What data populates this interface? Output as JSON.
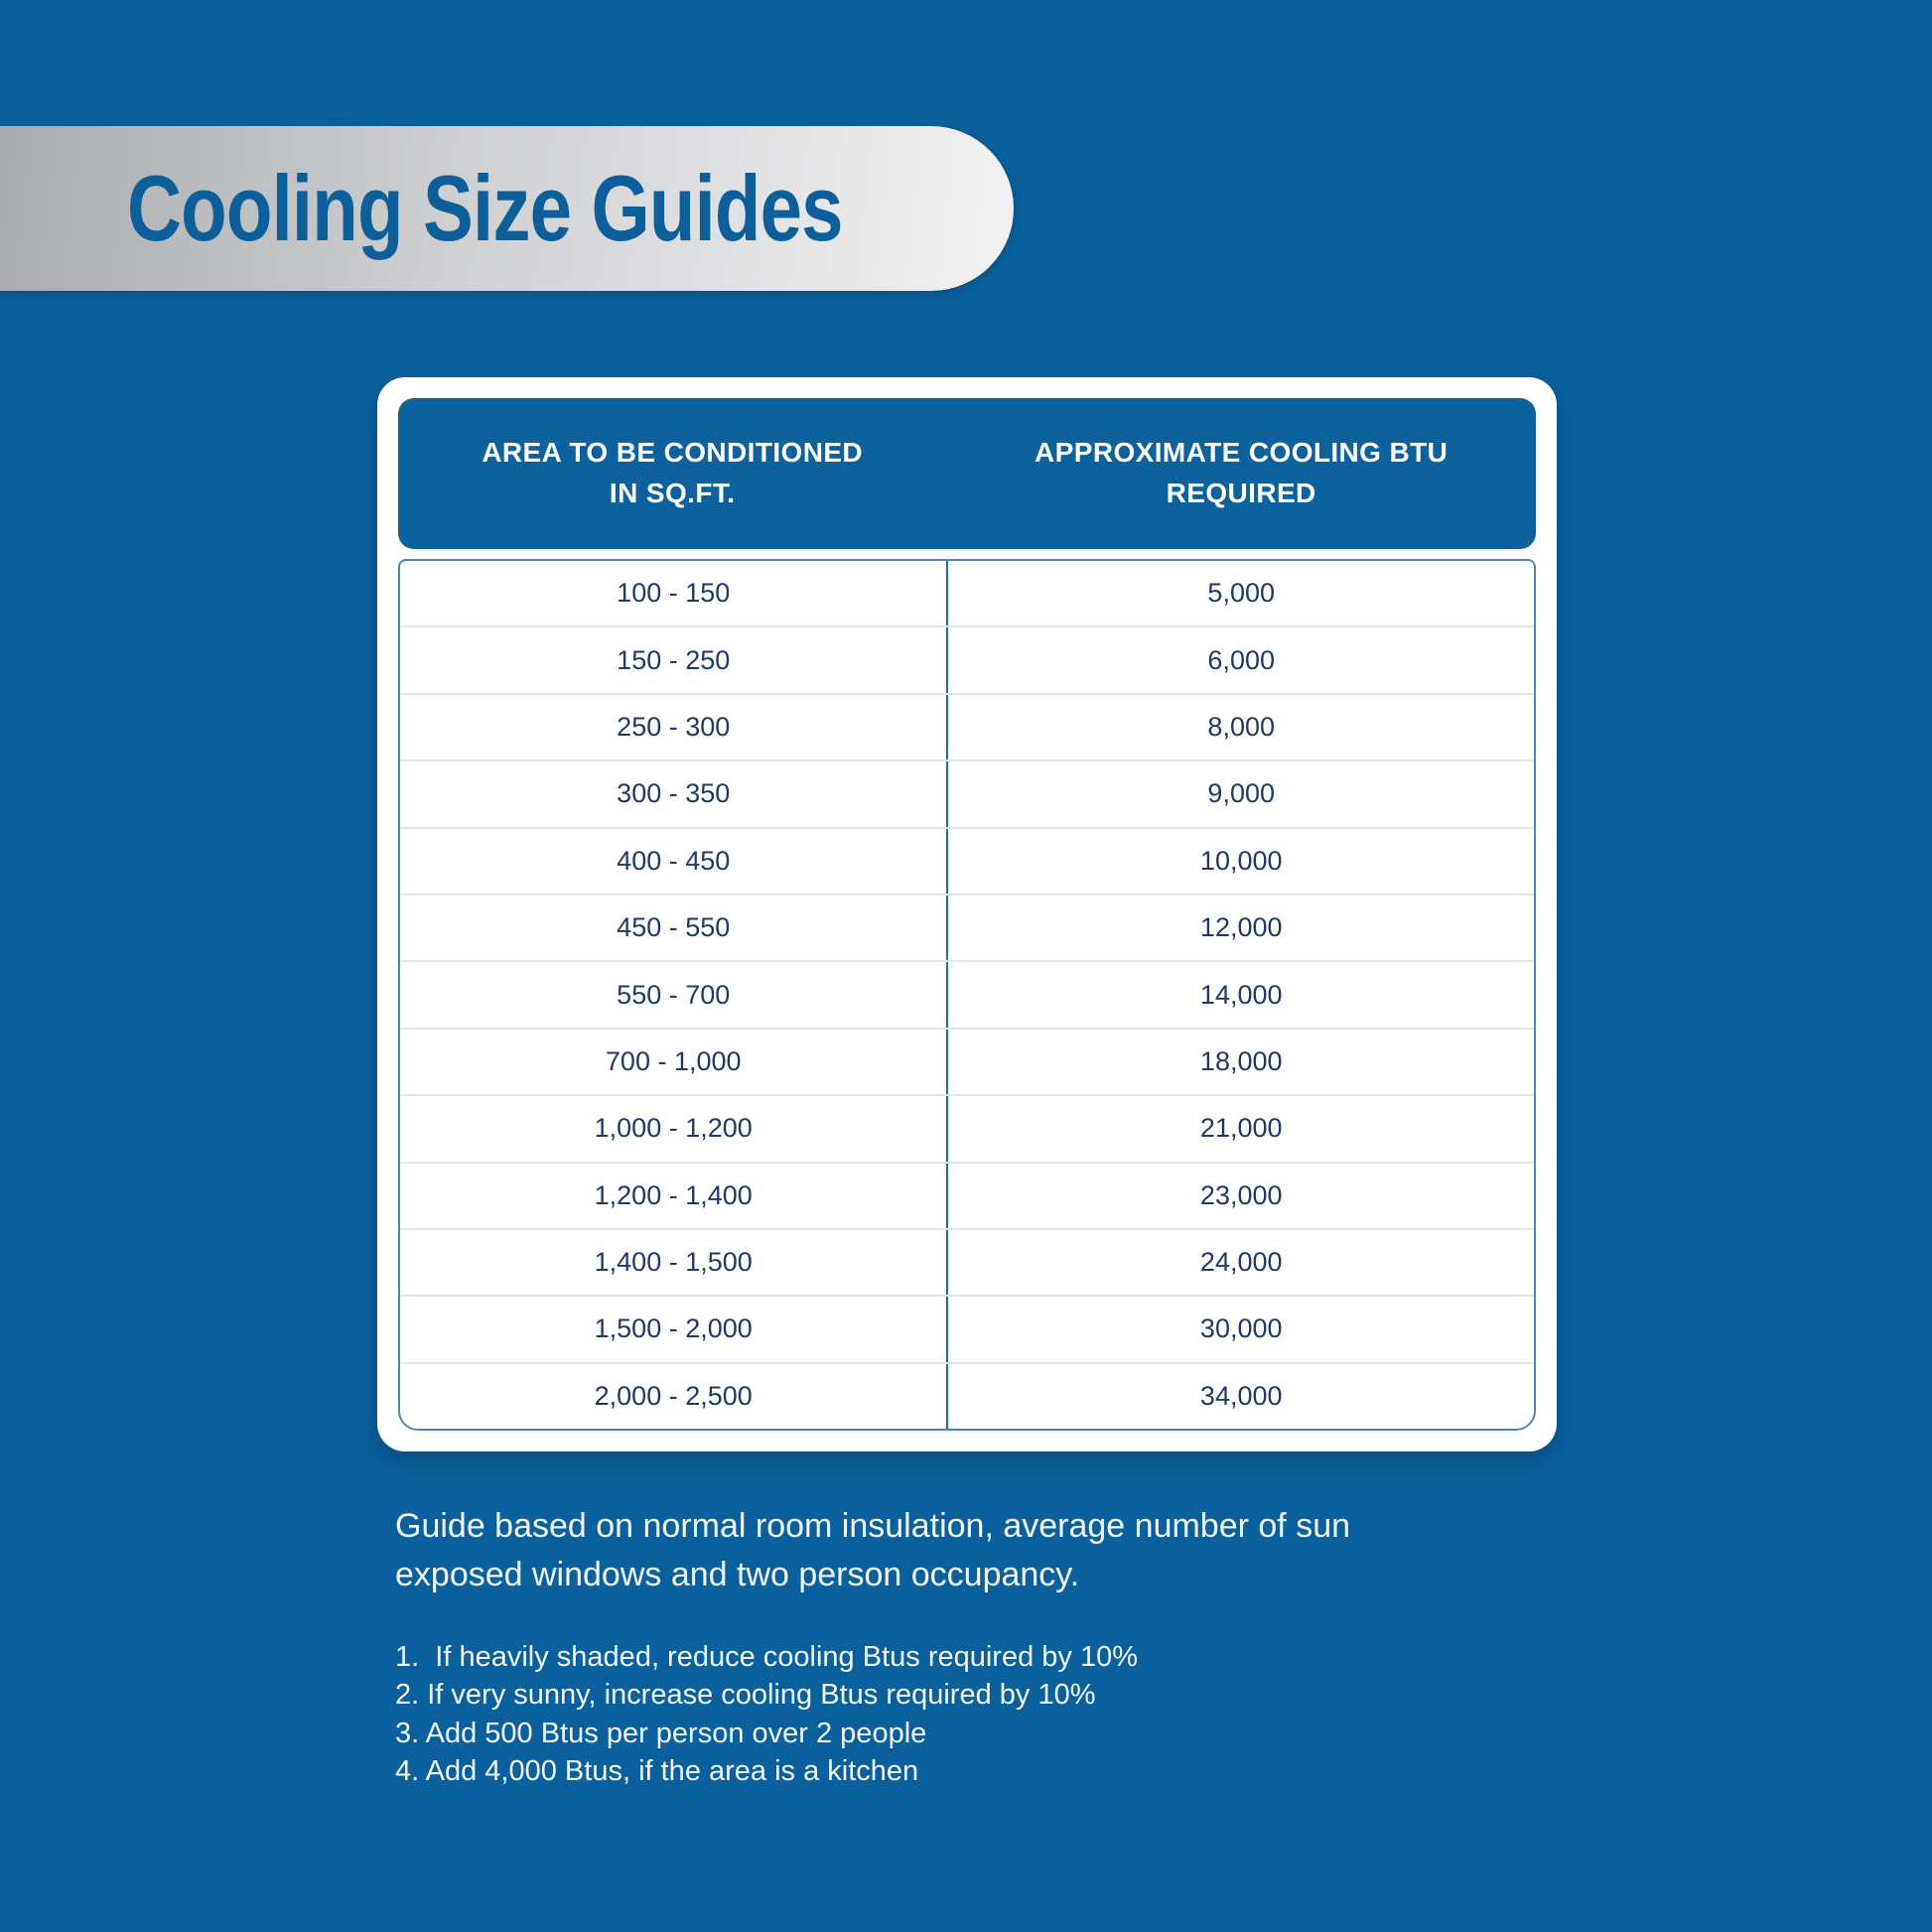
{
  "page": {
    "background_color": "#0a609c"
  },
  "banner": {
    "title": "Cooling Size Guides",
    "title_color": "#0d5f9b",
    "gradient_left": "#a9abae",
    "gradient_right": "#f2f2f3"
  },
  "table": {
    "header_bg": "#0d619d",
    "row_text_color": "#1e3a69",
    "divider_color": "#1373b2",
    "border_color": "#4e87b6",
    "headers": {
      "area": {
        "line1": "AREA TO BE CONDITIONED",
        "line2": "IN SQ.FT."
      },
      "btu": {
        "line1": "APPROXIMATE COOLING BTU",
        "line2": "REQUIRED"
      }
    },
    "rows": [
      {
        "area": "100 - 150",
        "btu": "5,000"
      },
      {
        "area": "150 - 250",
        "btu": "6,000"
      },
      {
        "area": "250 - 300",
        "btu": "8,000"
      },
      {
        "area": "300 - 350",
        "btu": "9,000"
      },
      {
        "area": "400 - 450",
        "btu": "10,000"
      },
      {
        "area": "450 - 550",
        "btu": "12,000"
      },
      {
        "area": "550 - 700",
        "btu": "14,000"
      },
      {
        "area": "700 - 1,000",
        "btu": "18,000"
      },
      {
        "area": "1,000 - 1,200",
        "btu": "21,000"
      },
      {
        "area": "1,200 - 1,400",
        "btu": "23,000"
      },
      {
        "area": "1,400 - 1,500",
        "btu": "24,000"
      },
      {
        "area": "1,500 - 2,000",
        "btu": "30,000"
      },
      {
        "area": "2,000 - 2,500",
        "btu": "34,000"
      }
    ]
  },
  "guide_note": {
    "lines": [
      "Guide based on normal room insulation, average number of sun",
      "exposed windows and two person occupancy."
    ]
  },
  "notes": [
    "1.  If heavily shaded, reduce cooling Btus required by 10%",
    "2. If very sunny, increase cooling Btus required by 10%",
    "3. Add 500 Btus per person over 2 people",
    "4. Add 4,000 Btus, if the area is a kitchen"
  ],
  "chart_data": {
    "type": "table",
    "title": "Cooling Size Guides",
    "columns": [
      "Area to be conditioned in sq.ft.",
      "Approximate cooling BTU required"
    ],
    "rows": [
      [
        "100 - 150",
        5000
      ],
      [
        "150 - 250",
        6000
      ],
      [
        "250 - 300",
        8000
      ],
      [
        "300 - 350",
        9000
      ],
      [
        "400 - 450",
        10000
      ],
      [
        "450 - 550",
        12000
      ],
      [
        "550 - 700",
        14000
      ],
      [
        "700 - 1,000",
        18000
      ],
      [
        "1,000 - 1,200",
        21000
      ],
      [
        "1,200 - 1,400",
        23000
      ],
      [
        "1,400 - 1,500",
        24000
      ],
      [
        "1,500 - 2,000",
        30000
      ],
      [
        "2,000 - 2,500",
        34000
      ]
    ],
    "footnotes": [
      "Guide based on normal room insulation, average number of sun exposed windows and two person occupancy.",
      "If heavily shaded, reduce cooling Btus required by 10%",
      "If very sunny, increase cooling Btus required by 10%",
      "Add 500 Btus per person over 2 people",
      "Add 4,000 Btus, if the area is a kitchen"
    ]
  }
}
